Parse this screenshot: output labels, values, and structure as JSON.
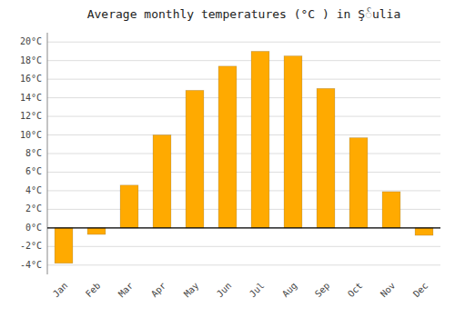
{
  "chart_data": {
    "type": "bar",
    "title": "Average monthly temperatures (°C ) in Ş်ulia",
    "categories": [
      "Jan",
      "Feb",
      "Mar",
      "Apr",
      "May",
      "Jun",
      "Jul",
      "Aug",
      "Sep",
      "Oct",
      "Nov",
      "Dec"
    ],
    "values": [
      -3.8,
      -0.7,
      4.6,
      10.0,
      14.8,
      17.4,
      19.0,
      18.5,
      15.0,
      9.7,
      3.9,
      -0.8
    ],
    "color": "#FFAA00",
    "ylim": [
      -5,
      21
    ],
    "yticks": [
      {
        "value": -4,
        "label": "-4°C"
      },
      {
        "value": -2,
        "label": "-2°C"
      },
      {
        "value": 0,
        "label": "0°C"
      },
      {
        "value": 2,
        "label": "2°C"
      },
      {
        "value": 4,
        "label": "4°C"
      },
      {
        "value": 6,
        "label": "6°C"
      },
      {
        "value": 8,
        "label": "8°C"
      },
      {
        "value": 10,
        "label": "10°C"
      },
      {
        "value": 12,
        "label": "12°C"
      },
      {
        "value": 14,
        "label": "14°C"
      },
      {
        "value": 16,
        "label": "16°C"
      },
      {
        "value": 18,
        "label": "18°C"
      },
      {
        "value": 20,
        "label": "20°C"
      }
    ],
    "grid": true
  }
}
